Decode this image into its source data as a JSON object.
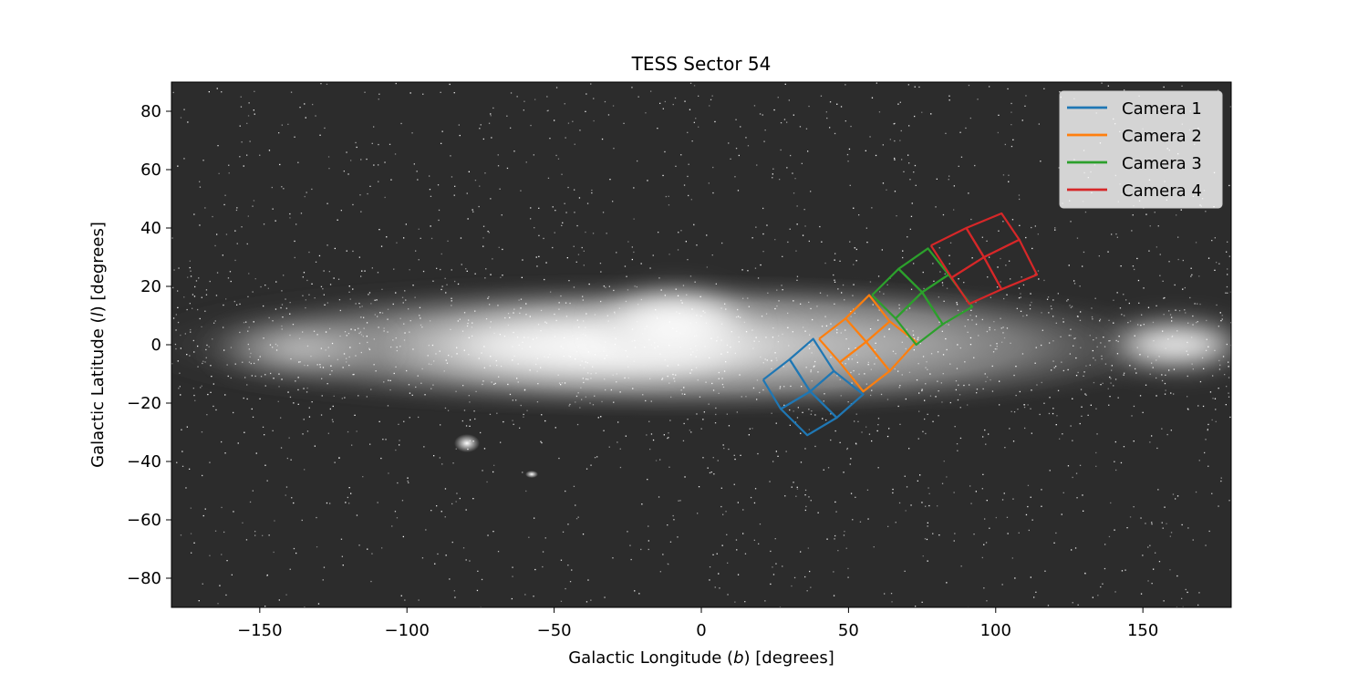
{
  "chart_data": {
    "type": "line",
    "title": "TESS Sector 54",
    "xlabel_parts": [
      "Galactic Longitude (",
      "b",
      ") [degrees]"
    ],
    "ylabel_parts": [
      "Galactic Latitude (",
      "l",
      ") [degrees]"
    ],
    "xlim": [
      -180,
      180
    ],
    "ylim": [
      -90,
      90
    ],
    "xticks": [
      -150,
      -100,
      -50,
      0,
      50,
      100,
      150
    ],
    "xtick_labels": [
      "−150",
      "−100",
      "−50",
      "0",
      "50",
      "100",
      "150"
    ],
    "yticks": [
      -80,
      -60,
      -40,
      -20,
      0,
      20,
      40,
      60,
      80
    ],
    "ytick_labels": [
      "−80",
      "−60",
      "−40",
      "−20",
      "0",
      "20",
      "40",
      "60",
      "80"
    ],
    "grid": false,
    "background": "all-sky galactic star map (grayscale)",
    "legend_position": "upper right",
    "series": [
      {
        "name": "Camera 1",
        "color": "#1f77b4",
        "ccds": [
          [
            [
              21,
              -12
            ],
            [
              30,
              -5
            ],
            [
              37,
              -16
            ],
            [
              27,
              -22
            ],
            [
              21,
              -12
            ]
          ],
          [
            [
              30,
              -5
            ],
            [
              38,
              2
            ],
            [
              45,
              -9
            ],
            [
              37,
              -16
            ],
            [
              30,
              -5
            ]
          ],
          [
            [
              27,
              -22
            ],
            [
              37,
              -16
            ],
            [
              46,
              -25
            ],
            [
              36,
              -31
            ],
            [
              27,
              -22
            ]
          ],
          [
            [
              37,
              -16
            ],
            [
              45,
              -9
            ],
            [
              55,
              -17
            ],
            [
              46,
              -25
            ],
            [
              37,
              -16
            ]
          ]
        ]
      },
      {
        "name": "Camera 2",
        "color": "#ff7f0e",
        "ccds": [
          [
            [
              40,
              2
            ],
            [
              49,
              9
            ],
            [
              56,
              1
            ],
            [
              47,
              -6
            ],
            [
              40,
              2
            ]
          ],
          [
            [
              49,
              9
            ],
            [
              57,
              17
            ],
            [
              64,
              8
            ],
            [
              56,
              1
            ],
            [
              49,
              9
            ]
          ],
          [
            [
              47,
              -6
            ],
            [
              56,
              1
            ],
            [
              64,
              -9
            ],
            [
              55,
              -16
            ],
            [
              47,
              -6
            ]
          ],
          [
            [
              56,
              1
            ],
            [
              64,
              8
            ],
            [
              73,
              1
            ],
            [
              64,
              -9
            ],
            [
              56,
              1
            ]
          ]
        ]
      },
      {
        "name": "Camera 3",
        "color": "#2ca02c",
        "ccds": [
          [
            [
              58,
              17
            ],
            [
              67,
              26
            ],
            [
              75,
              18
            ],
            [
              66,
              9
            ],
            [
              58,
              17
            ]
          ],
          [
            [
              67,
              26
            ],
            [
              77,
              33
            ],
            [
              84,
              24
            ],
            [
              75,
              18
            ],
            [
              67,
              26
            ]
          ],
          [
            [
              66,
              9
            ],
            [
              75,
              18
            ],
            [
              82,
              7
            ],
            [
              73,
              0
            ],
            [
              66,
              9
            ]
          ],
          [
            [
              75,
              18
            ],
            [
              84,
              24
            ],
            [
              92,
              13
            ],
            [
              82,
              7
            ],
            [
              75,
              18
            ]
          ]
        ]
      },
      {
        "name": "Camera 4",
        "color": "#d62728",
        "ccds": [
          [
            [
              78,
              34
            ],
            [
              90,
              40
            ],
            [
              96,
              30
            ],
            [
              85,
              23
            ],
            [
              78,
              34
            ]
          ],
          [
            [
              90,
              40
            ],
            [
              102,
              45
            ],
            [
              108,
              36
            ],
            [
              96,
              30
            ],
            [
              90,
              40
            ]
          ],
          [
            [
              85,
              23
            ],
            [
              96,
              30
            ],
            [
              102,
              19
            ],
            [
              91,
              14
            ],
            [
              85,
              23
            ]
          ],
          [
            [
              96,
              30
            ],
            [
              108,
              36
            ],
            [
              114,
              24
            ],
            [
              102,
              19
            ],
            [
              96,
              30
            ]
          ]
        ]
      }
    ]
  }
}
